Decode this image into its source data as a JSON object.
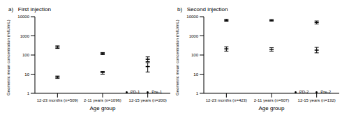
{
  "chart_data": [
    {
      "type": "scatter",
      "title": "a)   First injection",
      "x_label": "Age group",
      "y_label": "Geometric mean concentration (mIU/mL)",
      "categories": [
        "12-23 months (n=509)",
        "2-11 years (n=1096)",
        "12-15 years (n=200)"
      ],
      "log": "y",
      "ylim": [
        1,
        10000
      ],
      "yticks": [
        1,
        10,
        100,
        1000,
        10000
      ],
      "legend": "lower right",
      "series": [
        {
          "name": "Pre-1",
          "color": "#000000",
          "marker": "dash",
          "values": [
            7,
            12,
            25
          ],
          "ci": [
            [
              6,
              8
            ],
            [
              10,
              14
            ],
            [
              13,
              40
            ]
          ]
        },
        {
          "name": "PD-1",
          "color": "#000000",
          "marker": "dash",
          "values": [
            260,
            120,
            60
          ],
          "ci": [
            [
              220,
              300
            ],
            [
              105,
              135
            ],
            [
              45,
              80
            ]
          ]
        }
      ]
    },
    {
      "type": "scatter",
      "title": "b)   Second injection",
      "x_label": "Age group",
      "y_label": "Geometric mean concentration (mIU/mL)",
      "categories": [
        "12-23 months (n=423)",
        "2-11 years (n=607)",
        "12-15 years (n=132)"
      ],
      "log": "y",
      "ylim": [
        1,
        10000
      ],
      "yticks": [
        1,
        10,
        100,
        1000,
        10000
      ],
      "legend": "lower right",
      "series": [
        {
          "name": "Pre-2",
          "color": "#000000",
          "marker": "dash",
          "values": [
            210,
            200,
            180
          ],
          "ci": [
            [
              160,
              270
            ],
            [
              160,
              240
            ],
            [
              130,
              250
            ]
          ]
        },
        {
          "name": "PD-2",
          "color": "#000000",
          "marker": "dash",
          "values": [
            6500,
            6500,
            5000
          ],
          "ci": [
            [
              5800,
              7300
            ],
            [
              5900,
              7100
            ],
            [
              4200,
              6000
            ]
          ]
        }
      ]
    }
  ]
}
